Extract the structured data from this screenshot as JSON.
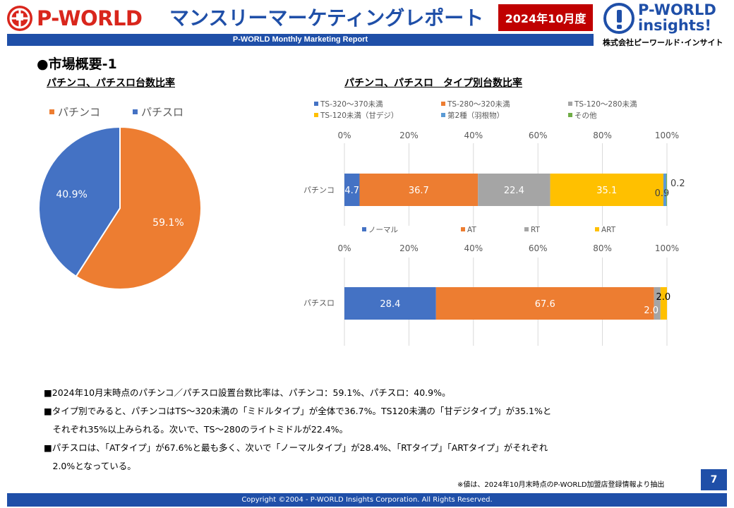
{
  "header": {
    "logo_left_text": "P-WORLD",
    "report_title": "マンスリーマーケティングレポート",
    "period": "2024年10月度",
    "subtitle": "P-WORLD Monthly Marketing Report",
    "logo_right_line1": "P-WORLD",
    "logo_right_line2": "insights!",
    "logo_right_company": "株式会社ピーワールド･インサイト"
  },
  "section_title": "●市場概要-1",
  "pie_chart_title": "パチンコ、パチスロ台数比率",
  "bar_chart_title": "パチンコ、パチスロ　タイプ別台数比率",
  "colors": {
    "brand_blue": "#1f4fa8",
    "brand_red": "#c00000",
    "orange": "#ed7d31",
    "blue": "#4472c4",
    "gray": "#a5a5a5",
    "yellow": "#ffc000",
    "lightblue": "#5b9bd5",
    "green": "#70ad47"
  },
  "chart_data": [
    {
      "type": "pie",
      "title": "パチンコ、パチスロ台数比率",
      "categories": [
        "パチンコ",
        "パチスロ"
      ],
      "values": [
        59.1,
        40.9
      ],
      "labels": [
        "59.1%",
        "40.9%"
      ],
      "colors": [
        "#ed7d31",
        "#4472c4"
      ],
      "legend_position": "top"
    },
    {
      "type": "bar",
      "orientation": "horizontal-stacked-100",
      "categories": [
        "パチンコ"
      ],
      "xlim": [
        0,
        100
      ],
      "ticks": [
        "0%",
        "20%",
        "40%",
        "60%",
        "80%",
        "100%"
      ],
      "series": [
        {
          "name": "TS-320～370未満",
          "values": [
            4.7
          ],
          "label": "4.7",
          "color": "#4472c4"
        },
        {
          "name": "TS-280～320未満",
          "values": [
            36.7
          ],
          "label": "36.7",
          "color": "#ed7d31"
        },
        {
          "name": "TS-120～280未満",
          "values": [
            22.4
          ],
          "label": "22.4",
          "color": "#a5a5a5"
        },
        {
          "name": "TS-120未満（甘デジ）",
          "values": [
            35.1
          ],
          "label": "35.1",
          "color": "#ffc000"
        },
        {
          "name": "第2種（羽根物）",
          "values": [
            0.9
          ],
          "label": "0.9",
          "color": "#5b9bd5"
        },
        {
          "name": "その他",
          "values": [
            0.2
          ],
          "label": "0.2",
          "color": "#70ad47"
        }
      ],
      "legend_position": "top"
    },
    {
      "type": "bar",
      "orientation": "horizontal-stacked-100",
      "categories": [
        "パチスロ"
      ],
      "xlim": [
        0,
        100
      ],
      "ticks": [
        "0%",
        "20%",
        "40%",
        "60%",
        "80%",
        "100%"
      ],
      "series": [
        {
          "name": "ノーマル",
          "values": [
            28.4
          ],
          "label": "28.4",
          "color": "#4472c4"
        },
        {
          "name": "AT",
          "values": [
            67.6
          ],
          "label": "67.6",
          "color": "#ed7d31"
        },
        {
          "name": "RT",
          "values": [
            2.0
          ],
          "label": "2.0",
          "color": "#a5a5a5"
        },
        {
          "name": "ART",
          "values": [
            2.0
          ],
          "label": "2.0",
          "color": "#ffc000"
        }
      ],
      "legend_position": "top"
    }
  ],
  "bullets": [
    "■2024年10月末時点のパチンコ／パチスロ設置台数比率は、パチンコ：59.1%、パチスロ：40.9%。",
    "■タイプ別でみると、パチンコはTS～320未満の「ミドルタイプ」が全体で36.7%。TS120未満の「甘デジタイプ」が35.1%と",
    "　それぞれ35%以上みられる。次いで、TS～280のライトミドルが22.4%。",
    "■パチスロは、「ATタイプ」が67.6%と最も多く、次いで「ノーマルタイプ」が28.4%、「RTタイプ」「ARTタイプ」がそれぞれ",
    "　2.0%となっている。"
  ],
  "footnote": "※値は、2024年10月末時点のP-WORLD加盟店登録情報より抽出",
  "page_number": "7",
  "copyright": "Copyright ©2004 - P-WORLD Insights Corporation. All Rights Reserved."
}
